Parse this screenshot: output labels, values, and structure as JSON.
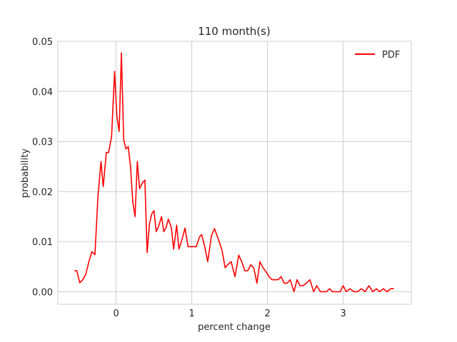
{
  "chart_data": {
    "type": "line",
    "title": "110 month(s)",
    "xlabel": "percent change",
    "ylabel": "probability",
    "xlim": [
      -0.77,
      3.9
    ],
    "ylim": [
      -0.0025,
      0.05
    ],
    "xticks": [
      0,
      1,
      2,
      3
    ],
    "xtick_labels": [
      "0",
      "1",
      "2",
      "3"
    ],
    "yticks": [
      0.0,
      0.01,
      0.02,
      0.03,
      0.04,
      0.05
    ],
    "ytick_labels": [
      "0.00",
      "0.01",
      "0.02",
      "0.03",
      "0.04",
      "0.05"
    ],
    "grid": true,
    "legend_position": "top-right",
    "series": [
      {
        "name": "PDF",
        "color": "#ff0000",
        "x": [
          -0.55,
          -0.52,
          -0.48,
          -0.44,
          -0.4,
          -0.36,
          -0.32,
          -0.28,
          -0.24,
          -0.2,
          -0.17,
          -0.13,
          -0.1,
          -0.06,
          -0.02,
          0.01,
          0.04,
          0.07,
          0.1,
          0.13,
          0.16,
          0.19,
          0.22,
          0.25,
          0.28,
          0.31,
          0.35,
          0.38,
          0.41,
          0.44,
          0.47,
          0.5,
          0.53,
          0.56,
          0.6,
          0.63,
          0.66,
          0.69,
          0.73,
          0.76,
          0.8,
          0.83,
          0.87,
          0.91,
          0.95,
          0.99,
          1.02,
          1.06,
          1.1,
          1.13,
          1.17,
          1.21,
          1.26,
          1.3,
          1.35,
          1.4,
          1.44,
          1.48,
          1.52,
          1.57,
          1.62,
          1.66,
          1.7,
          1.74,
          1.78,
          1.82,
          1.86,
          1.9,
          1.94,
          1.98,
          2.02,
          2.06,
          2.1,
          2.14,
          2.18,
          2.22,
          2.26,
          2.3,
          2.35,
          2.39,
          2.43,
          2.47,
          2.52,
          2.56,
          2.61,
          2.65,
          2.7,
          2.74,
          2.78,
          2.82,
          2.86,
          2.91,
          2.96,
          3.0,
          3.04,
          3.09,
          3.14,
          3.19,
          3.24,
          3.29,
          3.34,
          3.39,
          3.44,
          3.48,
          3.53,
          3.58,
          3.63,
          3.67
        ],
        "y": [
          0.0042,
          0.0042,
          0.0018,
          0.0024,
          0.0035,
          0.006,
          0.008,
          0.0074,
          0.019,
          0.026,
          0.021,
          0.0278,
          0.0278,
          0.031,
          0.044,
          0.035,
          0.032,
          0.0477,
          0.0304,
          0.0285,
          0.029,
          0.025,
          0.018,
          0.015,
          0.026,
          0.0206,
          0.0218,
          0.0223,
          0.0078,
          0.0135,
          0.0155,
          0.0162,
          0.012,
          0.013,
          0.015,
          0.012,
          0.0128,
          0.0145,
          0.0128,
          0.0085,
          0.0133,
          0.0085,
          0.0104,
          0.0127,
          0.009,
          0.009,
          0.009,
          0.009,
          0.0109,
          0.0114,
          0.0091,
          0.006,
          0.0112,
          0.0126,
          0.0105,
          0.0082,
          0.0048,
          0.0055,
          0.006,
          0.003,
          0.0073,
          0.006,
          0.0042,
          0.0042,
          0.0054,
          0.0047,
          0.0017,
          0.006,
          0.0048,
          0.004,
          0.003,
          0.0024,
          0.0024,
          0.0024,
          0.003,
          0.0017,
          0.0017,
          0.0024,
          0.0,
          0.0024,
          0.0012,
          0.0012,
          0.0018,
          0.0024,
          0.0,
          0.0012,
          0.0,
          0.0,
          0.0,
          0.0006,
          0.0,
          0.0,
          0.0,
          0.0012,
          0.0,
          0.0006,
          0.0,
          0.0,
          0.0006,
          0.0,
          0.0012,
          0.0,
          0.0006,
          0.0,
          0.0006,
          0.0,
          0.0006,
          0.0006
        ]
      }
    ]
  }
}
